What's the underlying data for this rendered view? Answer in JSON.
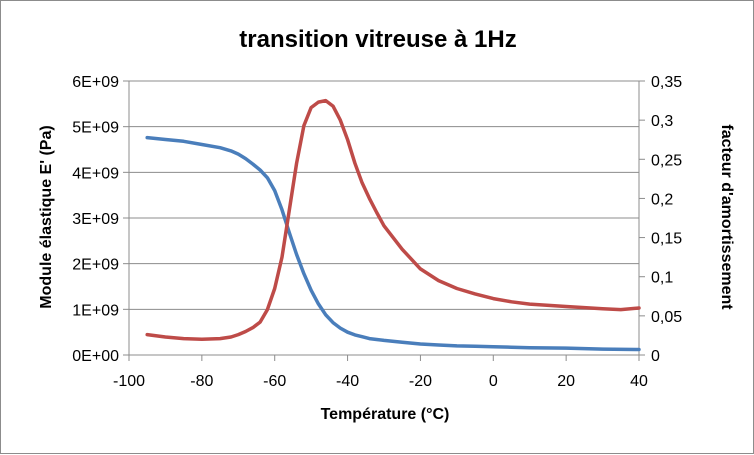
{
  "chart_data": {
    "type": "line",
    "title": "transition vitreuse à 1Hz",
    "xlabel": "Température (°C)",
    "ylabel": "Module élastique E' (Pa)",
    "y2label": "facteur d'amortissement",
    "xlim": [
      -100,
      40
    ],
    "ylim": [
      0,
      6000000000
    ],
    "y2lim": [
      0,
      0.35
    ],
    "x_ticks": [
      "-100",
      "-80",
      "-60",
      "-40",
      "-20",
      "0",
      "20",
      "40"
    ],
    "y_ticks": [
      "0E+00",
      "1E+09",
      "2E+09",
      "3E+09",
      "4E+09",
      "5E+09",
      "6E+09"
    ],
    "y2_ticks": [
      "0",
      "0,05",
      "0,1",
      "0,15",
      "0,2",
      "0,25",
      "0,3",
      "0,35"
    ],
    "grid": true,
    "legend": "none",
    "colors": {
      "modulus": "#4a7ebb",
      "damping": "#be4b48"
    },
    "series": [
      {
        "axis": "left",
        "x": [
          -95,
          -90,
          -85,
          -80,
          -75,
          -72,
          -70,
          -68,
          -66,
          -64,
          -62,
          -60,
          -58,
          -56,
          -54,
          -52,
          -50,
          -48,
          -46,
          -44,
          -42,
          -40,
          -38,
          -36,
          -34,
          -32,
          -30,
          -25,
          -20,
          -15,
          -10,
          -5,
          0,
          5,
          10,
          20,
          30,
          40
        ],
        "values": [
          4760000000,
          4720000000,
          4680000000,
          4610000000,
          4540000000,
          4470000000,
          4400000000,
          4300000000,
          4180000000,
          4050000000,
          3880000000,
          3600000000,
          3180000000,
          2680000000,
          2200000000,
          1780000000,
          1420000000,
          1120000000,
          880000000,
          710000000,
          590000000,
          500000000,
          440000000,
          400000000,
          360000000,
          340000000,
          320000000,
          280000000,
          240000000,
          220000000,
          200000000,
          190000000,
          180000000,
          170000000,
          160000000,
          150000000,
          130000000,
          120000000
        ]
      },
      {
        "axis": "right",
        "x": [
          -95,
          -90,
          -85,
          -80,
          -75,
          -72,
          -70,
          -68,
          -66,
          -64,
          -62,
          -60,
          -58,
          -56,
          -54,
          -52,
          -50,
          -48,
          -46,
          -44,
          -42,
          -40,
          -38,
          -36,
          -34,
          -32,
          -30,
          -25,
          -20,
          -15,
          -10,
          -5,
          0,
          5,
          10,
          20,
          30,
          35,
          40
        ],
        "values": [
          0.026,
          0.023,
          0.021,
          0.02,
          0.021,
          0.023,
          0.026,
          0.03,
          0.035,
          0.042,
          0.058,
          0.085,
          0.125,
          0.185,
          0.245,
          0.293,
          0.316,
          0.323,
          0.325,
          0.318,
          0.3,
          0.275,
          0.245,
          0.22,
          0.2,
          0.182,
          0.165,
          0.135,
          0.11,
          0.095,
          0.085,
          0.078,
          0.072,
          0.068,
          0.065,
          0.062,
          0.059,
          0.058,
          0.06
        ]
      }
    ]
  }
}
